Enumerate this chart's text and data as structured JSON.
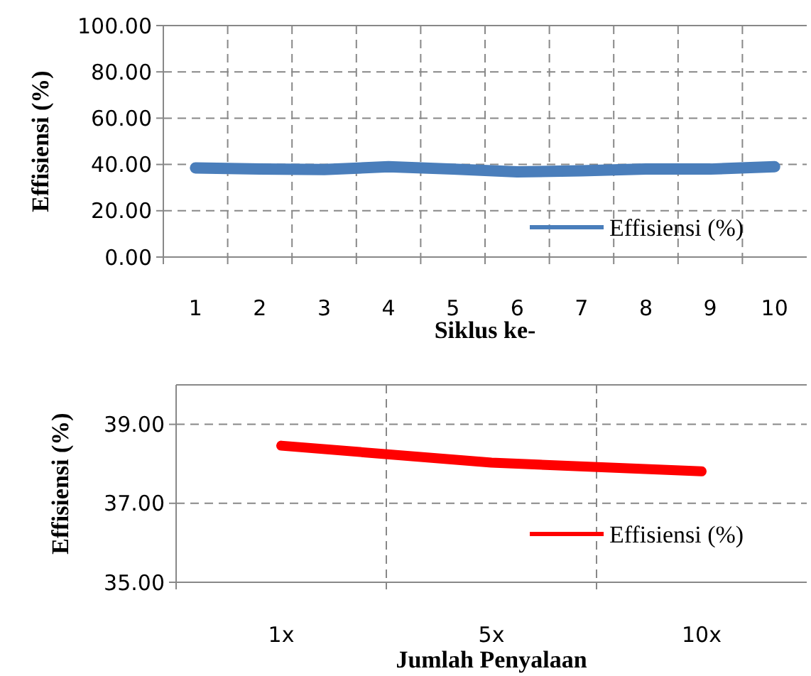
{
  "chart_data": [
    {
      "type": "line",
      "xlabel": "Siklus ke-",
      "ylabel": "Effisiensi (%)",
      "categories": [
        "1",
        "2",
        "3",
        "4",
        "5",
        "6",
        "7",
        "8",
        "9",
        "10"
      ],
      "series": [
        {
          "name": "Effisiensi (%)",
          "color": "#4a7ebb",
          "values": [
            38.5,
            38,
            37.8,
            39,
            38,
            36.8,
            37.3,
            38,
            38,
            39
          ]
        }
      ],
      "ylim": [
        0,
        100
      ],
      "yticks": [
        {
          "value": 0,
          "label": "0.00"
        },
        {
          "value": 20,
          "label": "20.00"
        },
        {
          "value": 40,
          "label": "40.00"
        },
        {
          "value": 60,
          "label": "60.00"
        },
        {
          "value": 80,
          "label": "80.00"
        },
        {
          "value": 100,
          "label": "100.00"
        }
      ],
      "grid": true,
      "legend": "bottom right",
      "marker": "none",
      "line_style": "solid"
    },
    {
      "type": "line",
      "xlabel": "Jumlah Penyalaan",
      "ylabel": "Effisiensi (%)",
      "categories": [
        "1x",
        "5x",
        "10x"
      ],
      "series": [
        {
          "name": "Effisiensi (%)",
          "color": "#ff0000",
          "values": [
            38.46,
            38.03,
            37.81
          ]
        }
      ],
      "ylim": [
        35,
        40
      ],
      "yticks": [
        {
          "value": 35,
          "label": "35.00"
        },
        {
          "value": 37,
          "label": "37.00"
        },
        {
          "value": 39,
          "label": "39.00"
        }
      ],
      "grid": true,
      "legend": "right",
      "marker": "none",
      "line_style": "solid"
    }
  ]
}
